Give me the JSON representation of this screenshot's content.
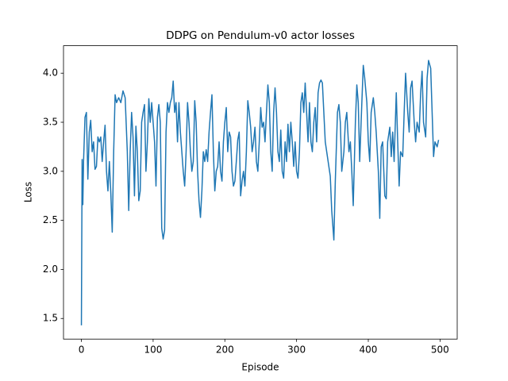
{
  "chart_data": {
    "type": "line",
    "title": "DDPG on Pendulum-v0 actor losses",
    "xlabel": "Episode",
    "ylabel": "Loss",
    "color": "#1f77b4",
    "xlim": [
      -24.95,
      523.95
    ],
    "xticks": [
      0,
      100,
      200,
      300,
      400,
      500
    ],
    "ylim": [
      1.29,
      4.28
    ],
    "yticks": [
      1.5,
      {
        "value": 2,
        "label": "2.0"
      },
      2.5,
      {
        "value": 3,
        "label": "3.0"
      },
      3.5,
      {
        "value": 4,
        "label": "4.0"
      }
    ],
    "x": [
      0,
      1,
      2,
      3,
      5,
      7,
      9,
      11,
      13,
      15,
      17,
      19,
      21,
      23,
      25,
      27,
      29,
      31,
      33,
      35,
      37,
      39,
      41,
      43,
      45,
      47,
      49,
      52,
      55,
      58,
      61,
      64,
      66,
      68,
      70,
      72,
      74,
      76,
      78,
      80,
      82,
      84,
      86,
      88,
      90,
      92,
      94,
      96,
      98,
      100,
      102,
      104,
      106,
      108,
      110,
      112,
      114,
      116,
      118,
      120,
      122,
      124,
      126,
      128,
      130,
      132,
      134,
      136,
      138,
      140,
      142,
      144,
      146,
      148,
      150,
      152,
      154,
      156,
      158,
      160,
      162,
      164,
      166,
      168,
      170,
      172,
      174,
      176,
      178,
      180,
      182,
      184,
      186,
      188,
      190,
      192,
      194,
      196,
      198,
      200,
      202,
      204,
      206,
      208,
      210,
      212,
      214,
      216,
      218,
      220,
      222,
      224,
      226,
      228,
      230,
      232,
      234,
      236,
      238,
      240,
      242,
      244,
      246,
      248,
      250,
      252,
      254,
      256,
      258,
      260,
      262,
      264,
      266,
      268,
      270,
      272,
      274,
      276,
      278,
      280,
      282,
      284,
      286,
      288,
      290,
      292,
      294,
      296,
      298,
      300,
      302,
      304,
      306,
      308,
      310,
      312,
      314,
      316,
      318,
      320,
      322,
      324,
      326,
      328,
      330,
      332,
      334,
      336,
      338,
      340,
      347,
      349,
      352,
      354,
      357,
      359,
      361,
      363,
      366,
      368,
      370,
      373,
      375,
      377,
      379,
      382,
      384,
      386,
      388,
      391,
      393,
      395,
      398,
      400,
      402,
      404,
      407,
      409,
      411,
      414,
      416,
      418,
      420,
      423,
      425,
      427,
      430,
      432,
      434,
      436,
      439,
      441,
      443,
      445,
      448,
      450,
      452,
      455,
      457,
      459,
      461,
      464,
      466,
      468,
      471,
      473,
      475,
      477,
      480,
      482,
      484,
      487,
      489,
      491,
      493,
      496,
      498
    ],
    "values": [
      1.43,
      3.12,
      2.66,
      3.1,
      3.55,
      3.6,
      2.92,
      3.4,
      3.52,
      3.2,
      3.3,
      3.02,
      3.05,
      3.35,
      3.3,
      3.35,
      3.1,
      3.3,
      3.47,
      3.0,
      2.8,
      3.1,
      2.78,
      2.38,
      3.2,
      3.78,
      3.7,
      3.75,
      3.7,
      3.82,
      3.75,
      3.2,
      2.6,
      3.2,
      3.6,
      3.35,
      2.75,
      3.46,
      3.2,
      2.7,
      2.8,
      3.5,
      3.6,
      3.68,
      3.0,
      3.3,
      3.74,
      3.5,
      3.7,
      3.5,
      3.3,
      2.85,
      3.55,
      3.68,
      3.5,
      2.42,
      2.31,
      2.4,
      3.4,
      3.7,
      3.6,
      3.7,
      3.75,
      3.92,
      3.6,
      3.7,
      3.3,
      3.7,
      3.4,
      3.2,
      3.0,
      2.85,
      3.2,
      3.7,
      3.5,
      3.2,
      3.0,
      3.1,
      3.72,
      3.5,
      3.0,
      2.7,
      2.53,
      2.8,
      3.2,
      3.1,
      3.22,
      3.1,
      3.4,
      3.6,
      3.78,
      3.2,
      2.8,
      3.0,
      3.05,
      3.3,
      3.0,
      2.9,
      3.3,
      3.5,
      3.65,
      3.2,
      3.4,
      3.35,
      3.0,
      2.85,
      2.9,
      3.1,
      3.32,
      3.4,
      2.75,
      2.9,
      3.0,
      2.85,
      3.2,
      3.72,
      3.6,
      3.45,
      3.2,
      3.3,
      3.45,
      3.1,
      3.0,
      3.3,
      3.65,
      3.45,
      3.5,
      3.3,
      3.6,
      3.88,
      3.7,
      3.2,
      3.0,
      3.6,
      3.85,
      3.6,
      3.2,
      3.1,
      3.42,
      3.0,
      2.93,
      3.3,
      3.1,
      3.48,
      3.2,
      3.5,
      3.3,
      3.05,
      3.3,
      3.0,
      2.93,
      3.2,
      3.7,
      3.8,
      3.6,
      3.9,
      3.6,
      3.3,
      3.7,
      3.3,
      3.2,
      3.5,
      3.65,
      3.3,
      3.8,
      3.9,
      3.93,
      3.9,
      3.6,
      3.3,
      2.95,
      2.6,
      2.3,
      2.9,
      3.6,
      3.68,
      3.5,
      3.0,
      3.2,
      3.5,
      3.6,
      3.2,
      3.3,
      3.0,
      2.65,
      3.5,
      3.88,
      3.7,
      3.1,
      3.7,
      4.08,
      3.95,
      3.7,
      3.3,
      3.1,
      3.6,
      3.75,
      3.6,
      3.4,
      3.0,
      2.52,
      3.25,
      3.3,
      2.75,
      2.72,
      3.3,
      3.45,
      3.15,
      3.4,
      3.1,
      3.8,
      3.3,
      2.85,
      3.2,
      3.15,
      3.6,
      4.0,
      3.6,
      3.4,
      3.85,
      3.92,
      3.5,
      3.3,
      3.5,
      3.4,
      3.8,
      4.02,
      3.5,
      3.35,
      3.95,
      4.13,
      4.05,
      3.6,
      3.15,
      3.3,
      3.25,
      3.32
    ]
  }
}
